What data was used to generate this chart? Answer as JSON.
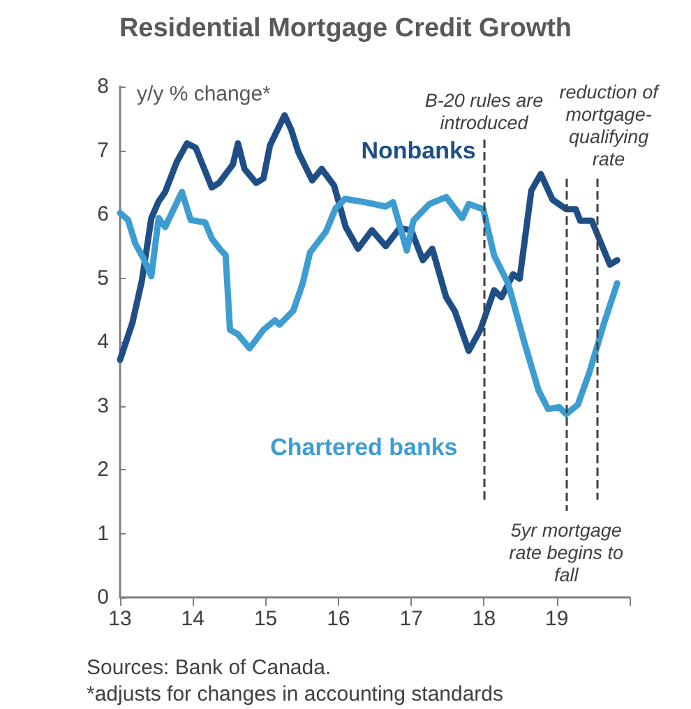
{
  "chart_data": {
    "type": "line",
    "title": "Residential Mortgage Credit Growth",
    "ylabel": "y/y % change*",
    "xlim": [
      13,
      20
    ],
    "xticks": [
      13,
      14,
      15,
      16,
      17,
      18,
      19,
      {
        "value": 20,
        "label": null
      }
    ],
    "ylim": [
      0,
      8
    ],
    "yticks": [
      0,
      1,
      2,
      3,
      4,
      5,
      6,
      7,
      8
    ],
    "grid": false,
    "legend": false,
    "marker": "none",
    "line_style": "solid",
    "series": [
      {
        "name": "Nonbanks",
        "color": "#1f4e87",
        "x": [
          13.0,
          13.17,
          13.3,
          13.43,
          13.53,
          13.62,
          13.78,
          13.92,
          14.04,
          14.26,
          14.36,
          14.55,
          14.62,
          14.71,
          14.87,
          14.97,
          15.06,
          15.26,
          15.35,
          15.45,
          15.64,
          15.77,
          15.94,
          16.1,
          16.27,
          16.46,
          16.65,
          16.84,
          17.0,
          17.16,
          17.29,
          17.48,
          17.6,
          17.79,
          17.95,
          18.14,
          18.24,
          18.4,
          18.49,
          18.65,
          18.78,
          18.94,
          19.13,
          19.26,
          19.32,
          19.48,
          19.61,
          19.73,
          19.83
        ],
        "values": [
          3.72,
          4.3,
          4.96,
          5.94,
          6.2,
          6.35,
          6.82,
          7.11,
          7.04,
          6.42,
          6.49,
          6.78,
          7.11,
          6.71,
          6.49,
          6.56,
          7.08,
          7.55,
          7.33,
          6.97,
          6.53,
          6.71,
          6.45,
          5.8,
          5.46,
          5.75,
          5.5,
          5.78,
          5.75,
          5.28,
          5.46,
          4.7,
          4.48,
          3.86,
          4.19,
          4.81,
          4.7,
          5.06,
          4.99,
          6.37,
          6.63,
          6.23,
          6.08,
          6.08,
          5.9,
          5.9,
          5.54,
          5.21,
          5.28
        ]
      },
      {
        "name": "Chartered banks",
        "color": "#3d9dd1",
        "x": [
          13.0,
          13.11,
          13.21,
          13.33,
          13.43,
          13.53,
          13.62,
          13.85,
          13.97,
          14.17,
          14.26,
          14.39,
          14.45,
          14.51,
          14.62,
          14.78,
          14.97,
          15.13,
          15.19,
          15.38,
          15.51,
          15.61,
          15.83,
          15.96,
          16.09,
          16.36,
          16.65,
          16.75,
          16.94,
          17.03,
          17.25,
          17.48,
          17.7,
          17.79,
          17.99,
          18.14,
          18.33,
          18.56,
          18.75,
          18.88,
          19.03,
          19.13,
          19.29,
          19.45,
          19.64,
          19.83
        ],
        "values": [
          6.02,
          5.91,
          5.54,
          5.29,
          5.03,
          5.94,
          5.8,
          6.35,
          5.91,
          5.87,
          5.62,
          5.43,
          5.36,
          4.19,
          4.12,
          3.9,
          4.19,
          4.34,
          4.27,
          4.49,
          4.92,
          5.4,
          5.73,
          6.09,
          6.24,
          6.19,
          6.12,
          6.19,
          5.43,
          5.9,
          6.16,
          6.27,
          5.94,
          6.16,
          6.08,
          5.35,
          4.92,
          3.97,
          3.24,
          2.95,
          2.98,
          2.87,
          3.02,
          3.53,
          4.26,
          4.92
        ]
      }
    ],
    "ref_lines": [
      {
        "axis": "x",
        "value": 18.0,
        "label": "B-20 rules are\nintroduced",
        "line_style": "dashed",
        "color": "#404040"
      },
      {
        "axis": "x",
        "value": 19.13,
        "label": "5yr mortgage\nrate begins to\nfall",
        "line_style": "dashed",
        "color": "#404040"
      },
      {
        "axis": "x",
        "value": 19.56,
        "label": "reduction of\nmortgage-\nqualifying\nrate",
        "line_style": "dashed",
        "color": "#404040"
      }
    ],
    "annotations": [
      "Sources: Bank of Canada.",
      "*adjusts for changes in accounting standards"
    ]
  }
}
